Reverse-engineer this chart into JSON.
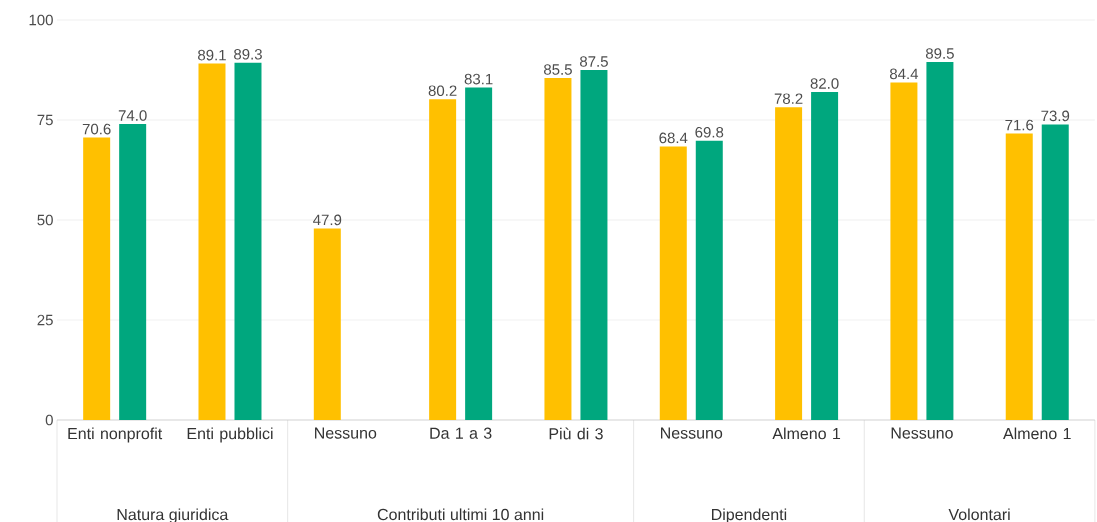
{
  "chart_data": {
    "type": "bar",
    "categories": [
      "Enti nonprofit",
      "Enti pubblici",
      "Nessuno",
      "Da 1 a 3",
      "Più di 3",
      "Nessuno",
      "Almeno 1",
      "Nessuno",
      "Almeno 1"
    ],
    "series": [
      {
        "color": "#ffc000",
        "values": [
          70.6,
          89.1,
          47.9,
          80.2,
          85.5,
          68.4,
          78.2,
          84.4,
          71.6
        ],
        "value_labels": [
          "70.6",
          "89.1",
          "47.9",
          "80.2",
          "85.5",
          "68.4",
          "78.2",
          "84.4",
          "71.6"
        ]
      },
      {
        "color": "#00a77e",
        "values": [
          74.0,
          89.3,
          null,
          83.1,
          87.5,
          69.8,
          82.0,
          89.5,
          73.9
        ],
        "value_labels": [
          "74.0",
          "89.3",
          null,
          "83.1",
          "87.5",
          "69.8",
          "82.0",
          "89.5",
          "73.9"
        ]
      }
    ],
    "annotations": [
      "Natura giuridica",
      "Contributi ultimi 10 anni",
      "Dipendenti",
      "Volontari"
    ],
    "ylim": [
      0,
      100
    ],
    "yticks": [
      0,
      25,
      50,
      75,
      100
    ],
    "grid": "y"
  }
}
